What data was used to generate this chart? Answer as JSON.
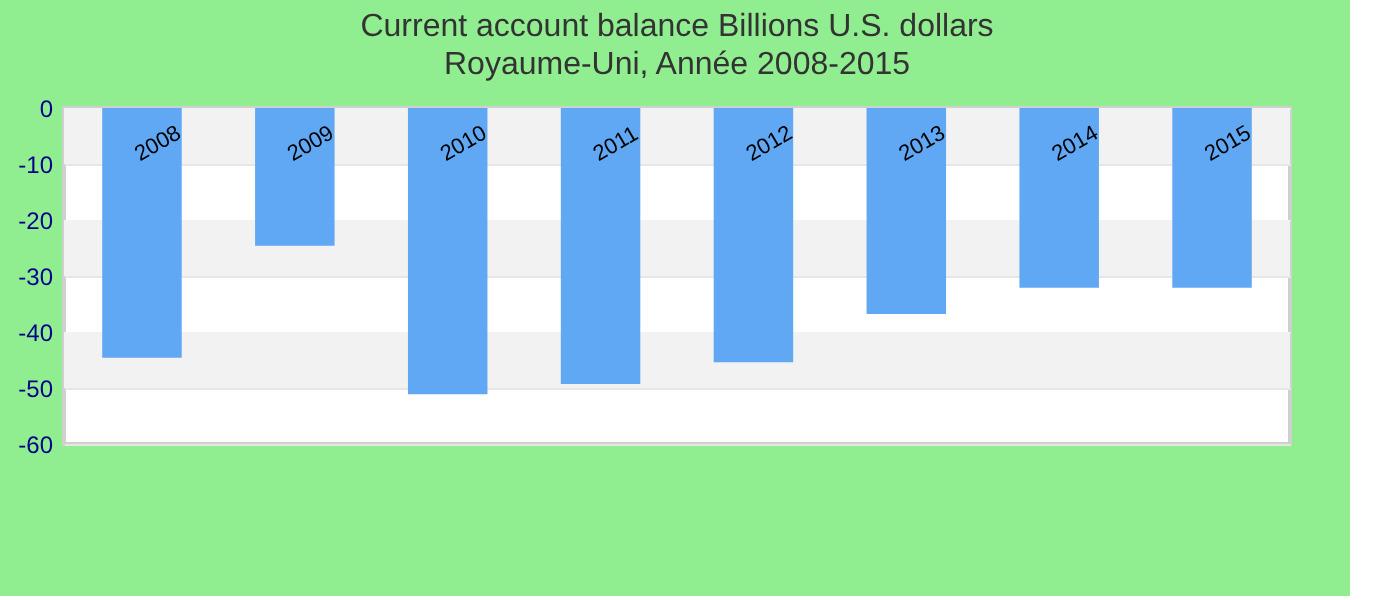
{
  "chart_data": {
    "type": "bar",
    "title": "Current account balance Billions U.S. dollars",
    "subtitle": "Royaume-Uni, Année 2008-2015",
    "categories": [
      "2008",
      "2009",
      "2010",
      "2011",
      "2012",
      "2013",
      "2014",
      "2015"
    ],
    "values": [
      -44.6,
      -24.6,
      -51.1,
      -49.3,
      -45.4,
      -36.8,
      -32.1,
      -32.1
    ],
    "color": "#60a8f4",
    "ylim": [
      -60,
      0
    ],
    "yticks": [
      -60,
      -50,
      -40,
      -30,
      -20,
      -10,
      0
    ],
    "grid": "y"
  }
}
